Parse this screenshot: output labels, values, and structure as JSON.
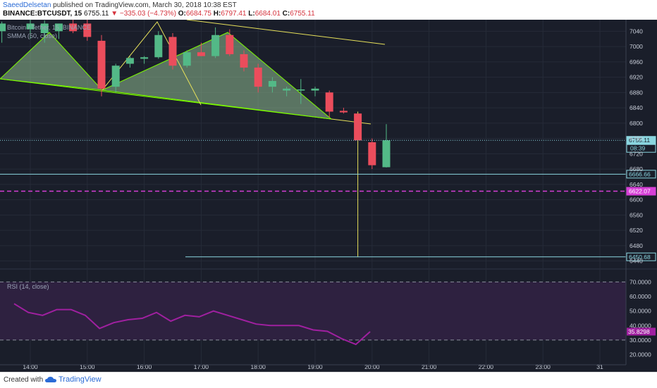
{
  "header": {
    "author": "SaeedDelsetan",
    "published_text": "published on TradingView.com, March 30, 2018 10:38 EST",
    "symbol_line": "BINANCE:BTCUSDT, 15",
    "last_price": "6755.11",
    "change": "−335.03 (−4.73%)",
    "open_label": "O:",
    "open": "6684.75",
    "high_label": "H:",
    "high": "6797.41",
    "low_label": "L:",
    "low": "6684.01",
    "close_label": "C:",
    "close": "6755.11"
  },
  "legend": {
    "main": "Bitcoin / Tether, 15, BINANCE",
    "smma": "SMMA (50, close)",
    "rsi": "RSI (14, close)"
  },
  "footer": {
    "created_with": "Created with",
    "brand": "TradingView"
  },
  "colors": {
    "background": "#1a1e2a",
    "bull": "#53b987",
    "bear": "#eb4d5c",
    "pattern_fill": "#8fbc8f",
    "pattern_line": "#7cfc00",
    "trend_line": "#e6e05a",
    "pink_level": "#d63fd6",
    "cyan_level": "#8ad6e0",
    "rsi_line": "#a020a0"
  },
  "chart_data": [
    {
      "type": "candlestick",
      "title": "Bitcoin / Tether, 15, BINANCE",
      "ylim": [
        6430,
        7070
      ],
      "y_ticks": [
        6440,
        6480,
        6520,
        6560,
        6600,
        6640,
        6680,
        6720,
        6760,
        6800,
        6840,
        6880,
        6920,
        6960,
        7000,
        7040
      ],
      "x_tick_labels": [
        "14:00",
        "15:00",
        "16:00",
        "17:00",
        "18:00",
        "19:00",
        "20:00",
        "21:00",
        "22:00",
        "23:00",
        "31"
      ],
      "candles": [
        {
          "t": "13:30",
          "o": 7040,
          "h": 7065,
          "l": 7010,
          "c": 7060
        },
        {
          "t": "14:00",
          "o": 7045,
          "h": 7070,
          "l": 7020,
          "c": 7060
        },
        {
          "t": "14:15",
          "o": 7035,
          "h": 7068,
          "l": 7010,
          "c": 7060
        },
        {
          "t": "14:30",
          "o": 7040,
          "h": 7060,
          "l": 7020,
          "c": 7060
        },
        {
          "t": "14:45",
          "o": 7060,
          "h": 7075,
          "l": 7035,
          "c": 7040
        },
        {
          "t": "15:00",
          "o": 7060,
          "h": 7072,
          "l": 7015,
          "c": 7025
        },
        {
          "t": "15:15",
          "o": 7015,
          "h": 7030,
          "l": 6870,
          "c": 6890
        },
        {
          "t": "15:30",
          "o": 6895,
          "h": 6955,
          "l": 6880,
          "c": 6950
        },
        {
          "t": "15:45",
          "o": 6955,
          "h": 6975,
          "l": 6945,
          "c": 6970
        },
        {
          "t": "16:00",
          "o": 6968,
          "h": 6975,
          "l": 6955,
          "c": 6972
        },
        {
          "t": "16:15",
          "o": 6972,
          "h": 7040,
          "l": 6968,
          "c": 7030
        },
        {
          "t": "16:30",
          "o": 7025,
          "h": 7035,
          "l": 6940,
          "c": 6950
        },
        {
          "t": "16:45",
          "o": 6950,
          "h": 6990,
          "l": 6945,
          "c": 6985
        },
        {
          "t": "17:00",
          "o": 6985,
          "h": 7010,
          "l": 6975,
          "c": 6975
        },
        {
          "t": "17:15",
          "o": 6975,
          "h": 7050,
          "l": 6970,
          "c": 7030
        },
        {
          "t": "17:30",
          "o": 7030,
          "h": 7045,
          "l": 6975,
          "c": 6980
        },
        {
          "t": "17:45",
          "o": 6980,
          "h": 6990,
          "l": 6935,
          "c": 6945
        },
        {
          "t": "18:00",
          "o": 6945,
          "h": 6955,
          "l": 6880,
          "c": 6895
        },
        {
          "t": "18:15",
          "o": 6895,
          "h": 6920,
          "l": 6880,
          "c": 6910
        },
        {
          "t": "18:30",
          "o": 6885,
          "h": 6895,
          "l": 6870,
          "c": 6890
        },
        {
          "t": "18:45",
          "o": 6885,
          "h": 6915,
          "l": 6850,
          "c": 6888
        },
        {
          "t": "19:00",
          "o": 6885,
          "h": 6895,
          "l": 6870,
          "c": 6890
        },
        {
          "t": "19:15",
          "o": 6880,
          "h": 6885,
          "l": 6815,
          "c": 6830
        },
        {
          "t": "19:30",
          "o": 6832,
          "h": 6840,
          "l": 6825,
          "c": 6828
        },
        {
          "t": "19:45",
          "o": 6825,
          "h": 6830,
          "l": 6450,
          "c": 6755
        },
        {
          "t": "20:00",
          "o": 6750,
          "h": 6760,
          "l": 6680,
          "c": 6690
        },
        {
          "t": "20:15",
          "o": 6684.75,
          "h": 6797.41,
          "l": 6684.01,
          "c": 6755.11
        }
      ],
      "levels": [
        {
          "value": 6755.11,
          "label": "6755.11",
          "style": "dotted-cyan"
        },
        {
          "value": 6666.66,
          "label": "6666.66",
          "style": "solid-cyan"
        },
        {
          "value": 6622.07,
          "label": "6622.07",
          "style": "dashed-pink"
        },
        {
          "value": 6450.68,
          "label": "6450.68",
          "style": "solid-cyan"
        }
      ],
      "countdown": "08:39"
    },
    {
      "type": "line",
      "title": "RSI (14, close)",
      "ylim": [
        13,
        76
      ],
      "y_ticks": [
        20,
        30,
        40,
        50,
        60,
        70
      ],
      "y_tick_labels": [
        "20.0000",
        "30.0000",
        "40.0000",
        "50.0000",
        "60.0000",
        "70.0000"
      ],
      "bands": [
        30,
        70
      ],
      "values": [
        55,
        49,
        47,
        51,
        51,
        47,
        38,
        42,
        44,
        45,
        49,
        43,
        47,
        46,
        50,
        47,
        44,
        41,
        40,
        40,
        40,
        37,
        36,
        31,
        27,
        35.8
      ],
      "last_value": "35.8298"
    }
  ]
}
